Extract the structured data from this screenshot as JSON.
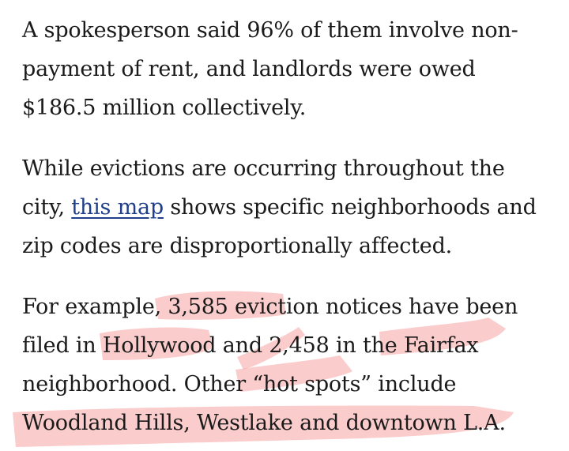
{
  "article": {
    "paragraphs": [
      {
        "text": "A spokesperson said 96% of them involve non-payment of rent, and landlords were owed $186.5 million collectively."
      },
      {
        "link_text": "this map",
        "text_before": "While evictions are occurring throughout the city, ",
        "text_after": " shows specific neighborhoods and zip codes are disproportionally affected."
      },
      {
        "text": "For example, 3,585 eviction notices have been filed in Hollywood and 2,458 in the Fairfax neighborhood. Other “hot spots” include Woodland Hills, Westlake and downtown L.A."
      }
    ]
  },
  "colors": {
    "text": "#1a1a1a",
    "link": "#1f3f8a",
    "highlight": "#f7a3a3",
    "background": "#ffffff"
  }
}
